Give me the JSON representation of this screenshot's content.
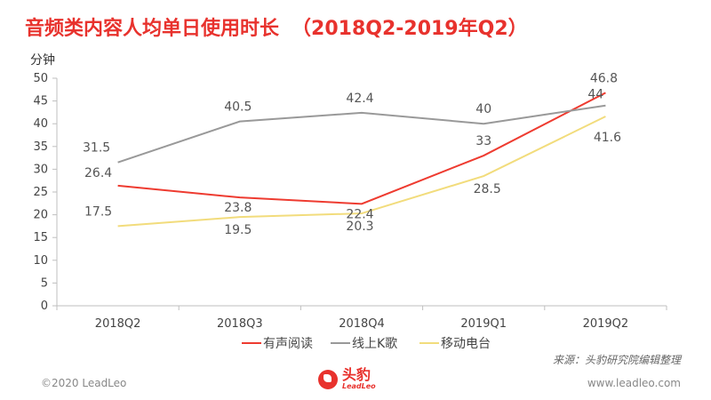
{
  "title": "音频类内容人均单日使用时长",
  "subtitle": "（2018Q2-2019年Q2）",
  "source": "来源：头豹研究院编辑整理",
  "footer": {
    "copyright": "©2020 LeadLeo",
    "website": "www.leadleo.com"
  },
  "logo": {
    "name": "头豹",
    "en": "LeadLeo"
  },
  "colors": {
    "accent": "#e8322d"
  },
  "chart_data": {
    "type": "line",
    "ylabel": "分钟",
    "ylim": [
      0,
      50
    ],
    "yticks": [
      0,
      5,
      10,
      15,
      20,
      25,
      30,
      35,
      40,
      45,
      50
    ],
    "categories": [
      "2018Q2",
      "2018Q3",
      "2018Q4",
      "2019Q1",
      "2019Q2"
    ],
    "legend_position": "bottom",
    "grid": false,
    "series": [
      {
        "name": "有声阅读",
        "color": "#ee3b30",
        "values": [
          26.4,
          23.8,
          22.4,
          33,
          46.8
        ]
      },
      {
        "name": "线上K歌",
        "color": "#999999",
        "values": [
          31.5,
          40.5,
          42.4,
          40,
          44
        ]
      },
      {
        "name": "移动电台",
        "color": "#f2dc7c",
        "values": [
          17.5,
          19.5,
          20.3,
          28.5,
          41.6
        ]
      }
    ]
  }
}
